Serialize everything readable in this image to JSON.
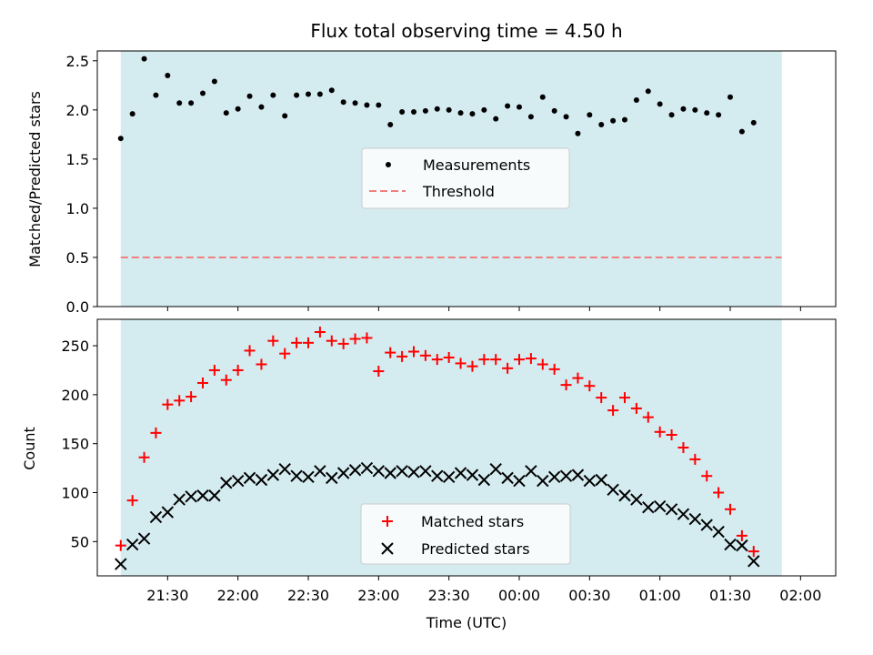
{
  "chart_data": [
    {
      "type": "scatter",
      "title": "Flux total observing time = 4.50 h",
      "ylabel": "Matched/Predicted stars",
      "ylim": [
        0,
        2.6
      ],
      "yticks": [
        "0.0",
        "0.5",
        "1.0",
        "1.5",
        "2.0",
        "2.5"
      ],
      "ytick_values": [
        0,
        0.5,
        1.0,
        1.5,
        2.0,
        2.5
      ],
      "legend": [
        "Measurements",
        "Threshold"
      ],
      "threshold": 0.5,
      "colors": {
        "measurements": "#000000",
        "threshold": "#f08080",
        "band": "#d4ebf0"
      },
      "series": [
        {
          "name": "Measurements",
          "values": [
            1.71,
            1.96,
            2.52,
            2.15,
            2.35,
            2.07,
            2.07,
            2.17,
            2.29,
            1.97,
            2.01,
            2.14,
            2.03,
            2.15,
            1.94,
            2.15,
            2.16,
            2.16,
            2.2,
            2.08,
            2.07,
            2.05,
            2.05,
            1.85,
            1.98,
            1.98,
            1.99,
            2.01,
            2.0,
            1.97,
            1.96,
            2.0,
            1.91,
            2.04,
            2.03,
            1.93,
            2.13,
            1.99,
            1.93,
            1.76,
            1.95,
            1.85,
            1.89,
            1.9,
            2.1,
            2.19,
            2.06,
            1.95,
            2.01,
            2.0,
            1.97,
            1.95,
            2.13,
            1.78,
            1.87
          ]
        }
      ]
    },
    {
      "type": "scatter",
      "xlabel": "Time (UTC)",
      "ylabel": "Count",
      "ylim": [
        15,
        277
      ],
      "yticks": [
        "50",
        "100",
        "150",
        "200",
        "250"
      ],
      "ytick_values": [
        50,
        100,
        150,
        200,
        250
      ],
      "xticks": [
        "21:30",
        "22:00",
        "22:30",
        "23:00",
        "23:30",
        "00:00",
        "00:30",
        "01:00",
        "01:30",
        "02:00"
      ],
      "xtick_minutes": [
        30,
        60,
        90,
        120,
        150,
        180,
        210,
        240,
        270,
        300
      ],
      "xlim_minutes": [
        0,
        315
      ],
      "band_minutes": [
        10,
        292
      ],
      "x_minutes": [
        10,
        15,
        20,
        25,
        30,
        35,
        40,
        45,
        50,
        55,
        60,
        65,
        70,
        75,
        80,
        85,
        90,
        95,
        100,
        105,
        110,
        115,
        120,
        125,
        130,
        135,
        140,
        145,
        150,
        155,
        160,
        165,
        170,
        175,
        180,
        185,
        190,
        195,
        200,
        205,
        210,
        215,
        220,
        225,
        230,
        235,
        240,
        245,
        250,
        255,
        260,
        265,
        270,
        275,
        280
      ],
      "legend": [
        "Matched stars",
        "Predicted stars"
      ],
      "colors": {
        "matched": "#ff0000",
        "predicted": "#000000"
      },
      "series": [
        {
          "name": "Matched stars",
          "values": [
            46,
            92,
            136,
            161,
            190,
            194,
            198,
            212,
            225,
            215,
            225,
            245,
            231,
            255,
            242,
            253,
            253,
            264,
            255,
            252,
            257,
            258,
            224,
            243,
            239,
            244,
            240,
            236,
            238,
            232,
            229,
            236,
            236,
            227,
            236,
            237,
            231,
            226,
            210,
            217,
            209,
            197,
            184,
            197,
            186,
            177,
            162,
            159,
            146,
            134,
            117,
            100,
            83,
            56,
            40
          ]
        },
        {
          "name": "Predicted stars",
          "values": [
            27,
            47,
            53,
            75,
            80,
            93,
            96,
            97,
            97,
            110,
            112,
            115,
            113,
            118,
            124,
            117,
            116,
            122,
            115,
            120,
            123,
            125,
            122,
            120,
            122,
            121,
            122,
            117,
            116,
            120,
            118,
            113,
            124,
            115,
            112,
            122,
            112,
            116,
            117,
            118,
            112,
            113,
            103,
            97,
            93,
            85,
            86,
            83,
            78,
            73,
            67,
            60,
            47,
            46,
            30
          ]
        }
      ]
    }
  ]
}
